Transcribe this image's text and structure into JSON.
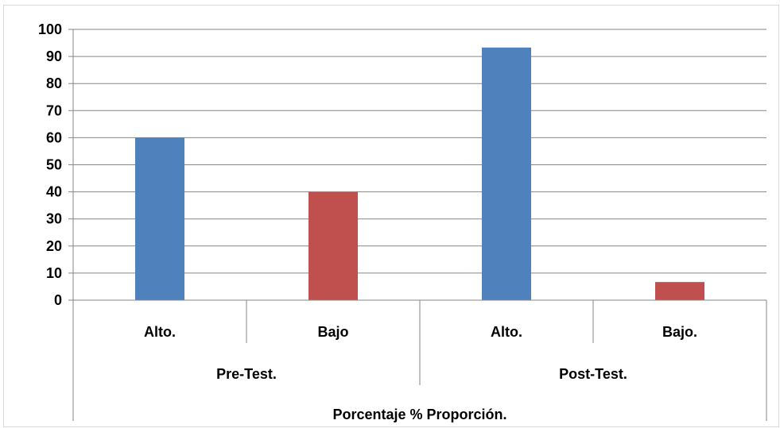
{
  "chart_data": {
    "type": "bar",
    "title": "",
    "ylabel": "",
    "xlabel": "Porcentaje % Proporción.",
    "ylim": [
      0,
      100
    ],
    "y_ticks": [
      0,
      10,
      20,
      30,
      40,
      50,
      60,
      70,
      80,
      90,
      100
    ],
    "grid": true,
    "groups": [
      {
        "label": "Pre-Test.",
        "categories": [
          "Alto.",
          "Bajo"
        ]
      },
      {
        "label": "Post-Test.",
        "categories": [
          "Alto.",
          "Bajo."
        ]
      }
    ],
    "categories": [
      "Alto.",
      "Bajo",
      "Alto.",
      "Bajo."
    ],
    "values": [
      60,
      40,
      93.3,
      6.7
    ],
    "colors": [
      "#4F81BD",
      "#C0504D",
      "#4F81BD",
      "#C0504D"
    ]
  }
}
